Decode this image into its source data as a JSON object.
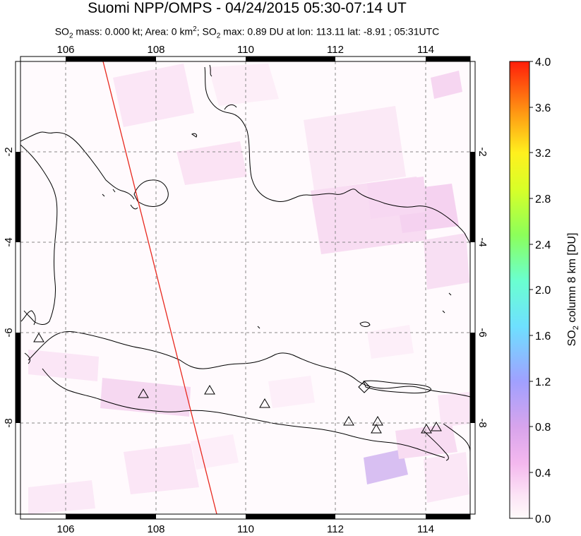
{
  "header": {
    "title": "Suomi NPP/OMPS - 04/24/2015 05:30-07:14 UT",
    "subtitle_parts": {
      "p1": "SO",
      "s1": "2",
      "p2": " mass: 0.000 kt; Area: 0 km",
      "sup": "2",
      "p3": "; SO",
      "s2": "2",
      "p4": " max: 0.89 DU at lon: 113.11 lat: -8.91 ; 05:31UTC"
    }
  },
  "map": {
    "lon_range": [
      105,
      115
    ],
    "lat_range": [
      -10,
      0
    ],
    "lon_ticks": [
      "106",
      "108",
      "110",
      "112",
      "114"
    ],
    "lat_ticks_left": [
      "-2",
      "-4",
      "-6",
      "-8"
    ],
    "lat_ticks_right": [
      "-2",
      "-4",
      "-6",
      "-8"
    ],
    "volcano_markers": 11,
    "swath_edge_color": "#e8281e"
  },
  "colorbar": {
    "label_main": "SO",
    "label_sub": "2",
    "label_rest": " column 8 km [DU]",
    "ticks": [
      "4.0",
      "3.6",
      "3.2",
      "2.8",
      "2.4",
      "2.0",
      "1.6",
      "1.2",
      "0.8",
      "0.4",
      "0.0"
    ],
    "range": [
      0.0,
      4.0
    ],
    "colormap": [
      "#fffafa",
      "#f8c8f0",
      "#d89ee8",
      "#9a9aff",
      "#78d8ff",
      "#6aff9a",
      "#b4ff3c",
      "#fff028",
      "#ffb414",
      "#ff640a",
      "#ff1e0a"
    ]
  }
}
